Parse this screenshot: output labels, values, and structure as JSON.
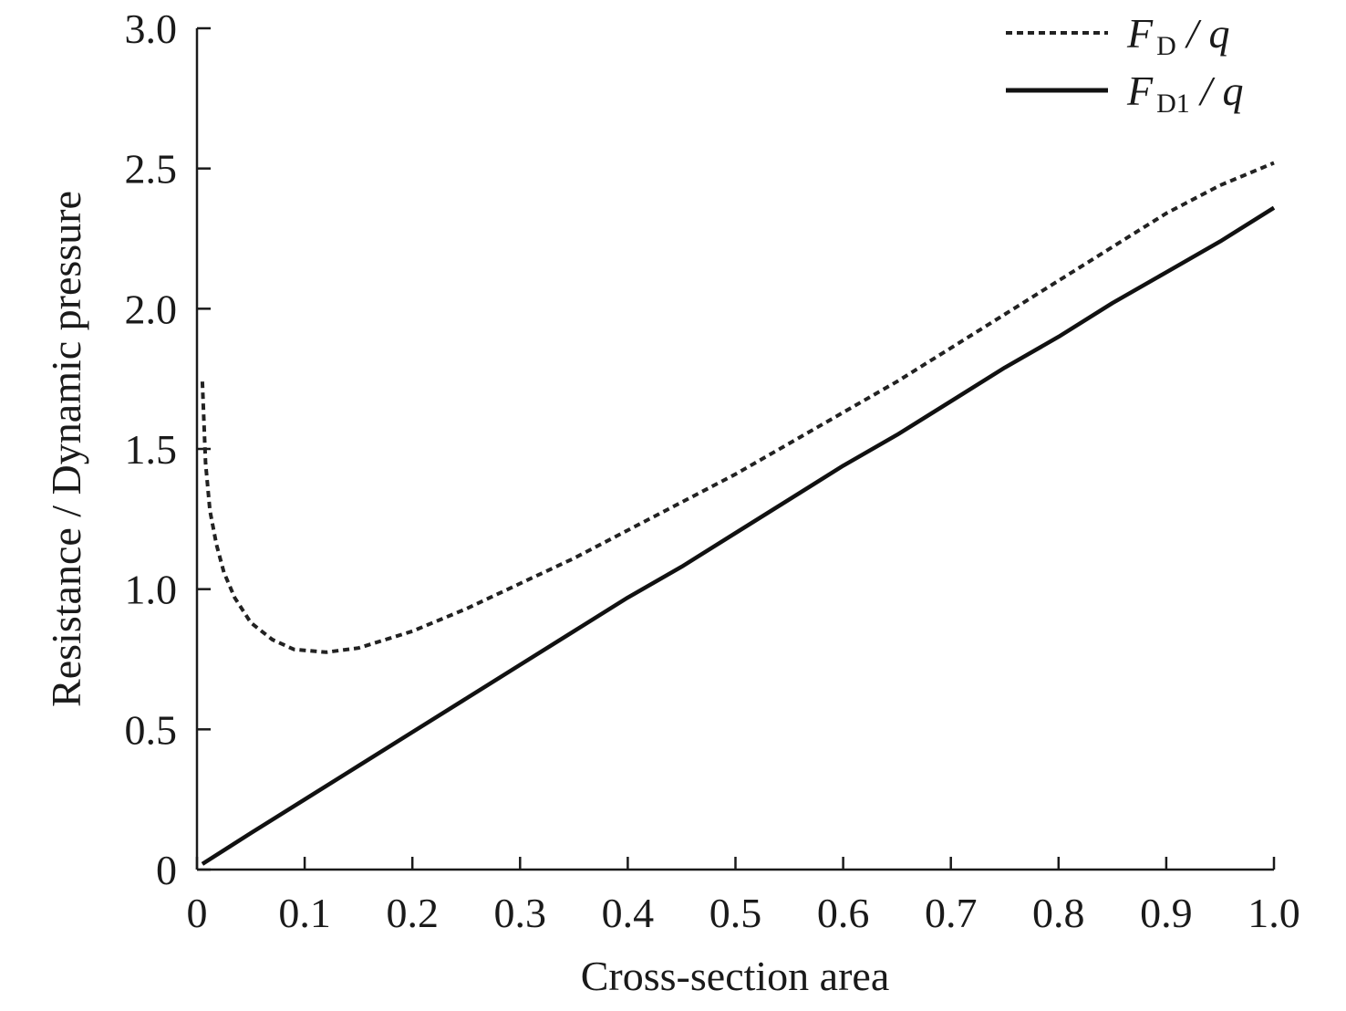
{
  "chart_data": {
    "type": "line",
    "title": "",
    "xlabel": "Cross-section area",
    "ylabel": "Resistance / Dynamic pressure",
    "xlim": [
      0,
      1.0
    ],
    "ylim": [
      0,
      3.0
    ],
    "x_ticks": [
      0,
      0.1,
      0.2,
      0.3,
      0.4,
      0.5,
      0.6,
      0.7,
      0.8,
      0.9,
      1.0
    ],
    "x_tick_labels": [
      "0",
      "0.1",
      "0.2",
      "0.3",
      "0.4",
      "0.5",
      "0.6",
      "0.7",
      "0.8",
      "0.9",
      "1.0"
    ],
    "y_ticks": [
      0,
      0.5,
      1.0,
      1.5,
      2.0,
      2.5,
      3.0
    ],
    "y_tick_labels": [
      "0",
      "0.5",
      "1.0",
      "1.5",
      "2.0",
      "2.5",
      "3.0"
    ],
    "grid": false,
    "legend_position": "top-right",
    "series": [
      {
        "name": "FD / q",
        "legend_main": "F",
        "legend_sub": "D",
        "legend_rest": " / q",
        "style": "dashed",
        "color": "#222222",
        "points": [
          [
            0.005,
            1.74
          ],
          [
            0.008,
            1.45
          ],
          [
            0.012,
            1.28
          ],
          [
            0.018,
            1.16
          ],
          [
            0.025,
            1.06
          ],
          [
            0.035,
            0.97
          ],
          [
            0.05,
            0.88
          ],
          [
            0.07,
            0.82
          ],
          [
            0.09,
            0.785
          ],
          [
            0.12,
            0.775
          ],
          [
            0.15,
            0.79
          ],
          [
            0.2,
            0.85
          ],
          [
            0.25,
            0.93
          ],
          [
            0.3,
            1.02
          ],
          [
            0.35,
            1.11
          ],
          [
            0.4,
            1.21
          ],
          [
            0.45,
            1.31
          ],
          [
            0.5,
            1.41
          ],
          [
            0.55,
            1.52
          ],
          [
            0.6,
            1.63
          ],
          [
            0.65,
            1.74
          ],
          [
            0.7,
            1.86
          ],
          [
            0.75,
            1.98
          ],
          [
            0.8,
            2.1
          ],
          [
            0.85,
            2.22
          ],
          [
            0.9,
            2.34
          ],
          [
            0.95,
            2.44
          ],
          [
            1.0,
            2.52
          ]
        ]
      },
      {
        "name": "FD1 / q",
        "legend_main": "F",
        "legend_sub": "D1",
        "legend_rest": " / q",
        "style": "solid",
        "color": "#111111",
        "points": [
          [
            0.005,
            0.02
          ],
          [
            0.05,
            0.13
          ],
          [
            0.1,
            0.25
          ],
          [
            0.15,
            0.37
          ],
          [
            0.2,
            0.49
          ],
          [
            0.25,
            0.61
          ],
          [
            0.3,
            0.73
          ],
          [
            0.35,
            0.85
          ],
          [
            0.4,
            0.97
          ],
          [
            0.45,
            1.08
          ],
          [
            0.5,
            1.2
          ],
          [
            0.55,
            1.32
          ],
          [
            0.6,
            1.44
          ],
          [
            0.65,
            1.55
          ],
          [
            0.7,
            1.67
          ],
          [
            0.75,
            1.79
          ],
          [
            0.8,
            1.9
          ],
          [
            0.85,
            2.02
          ],
          [
            0.9,
            2.13
          ],
          [
            0.95,
            2.24
          ],
          [
            1.0,
            2.36
          ]
        ]
      }
    ]
  }
}
